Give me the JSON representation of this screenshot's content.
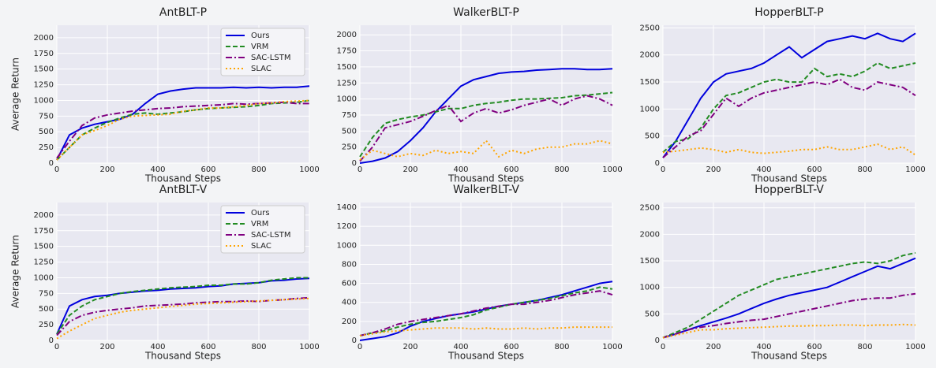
{
  "chart_data": [
    {
      "type": "line",
      "title": "AntBLT-P",
      "xlabel": "Thousand Steps",
      "ylabel": "Average Return",
      "legend": "upper right",
      "grid": true,
      "x": [
        0,
        50,
        100,
        150,
        200,
        250,
        300,
        350,
        400,
        450,
        500,
        550,
        600,
        650,
        700,
        750,
        800,
        850,
        900,
        950,
        1000
      ],
      "xlim": [
        0,
        1000
      ],
      "xticks": [
        0,
        200,
        400,
        600,
        800,
        1000
      ],
      "ylim": [
        0,
        2200
      ],
      "yticks": [
        0,
        250,
        500,
        750,
        1000,
        1250,
        1500,
        1750,
        2000
      ],
      "series": [
        {
          "name": "Ours",
          "color": "#0000dd",
          "style": "solid",
          "values": [
            50,
            450,
            560,
            620,
            660,
            700,
            780,
            950,
            1100,
            1150,
            1180,
            1200,
            1200,
            1200,
            1210,
            1200,
            1210,
            1200,
            1210,
            1210,
            1230
          ]
        },
        {
          "name": "VRM",
          "color": "#228b22",
          "style": "dashed",
          "values": [
            50,
            250,
            450,
            560,
            650,
            720,
            780,
            800,
            780,
            800,
            820,
            850,
            870,
            880,
            890,
            900,
            920,
            950,
            960,
            970,
            1000
          ]
        },
        {
          "name": "SAC-LSTM",
          "color": "#800080",
          "style": "dashdot",
          "values": [
            80,
            350,
            600,
            720,
            770,
            800,
            830,
            850,
            870,
            880,
            900,
            910,
            920,
            930,
            950,
            940,
            950,
            960,
            970,
            950,
            950
          ]
        },
        {
          "name": "SLAC",
          "color": "#ffa500",
          "style": "dotted",
          "values": [
            50,
            250,
            450,
            520,
            600,
            700,
            750,
            760,
            770,
            780,
            830,
            850,
            880,
            880,
            900,
            920,
            950,
            960,
            980,
            990,
            1000
          ]
        }
      ]
    },
    {
      "type": "line",
      "title": "WalkerBLT-P",
      "xlabel": "Thousand Steps",
      "grid": true,
      "x": [
        0,
        50,
        100,
        150,
        200,
        250,
        300,
        350,
        400,
        450,
        500,
        550,
        600,
        650,
        700,
        750,
        800,
        850,
        900,
        950,
        1000
      ],
      "xlim": [
        0,
        1000
      ],
      "xticks": [
        0,
        200,
        400,
        600,
        800,
        1000
      ],
      "ylim": [
        0,
        2150
      ],
      "yticks": [
        0,
        250,
        500,
        750,
        1000,
        1250,
        1500,
        1750,
        2000
      ],
      "series": [
        {
          "name": "Ours",
          "color": "#0000dd",
          "style": "solid",
          "values": [
            0,
            30,
            80,
            180,
            350,
            550,
            800,
            1000,
            1200,
            1300,
            1350,
            1400,
            1420,
            1430,
            1450,
            1460,
            1470,
            1470,
            1460,
            1460,
            1470
          ]
        },
        {
          "name": "VRM",
          "color": "#228b22",
          "style": "dashed",
          "values": [
            100,
            400,
            620,
            680,
            720,
            750,
            800,
            850,
            850,
            900,
            930,
            950,
            980,
            1000,
            1000,
            1010,
            1020,
            1050,
            1060,
            1080,
            1100
          ]
        },
        {
          "name": "SAC-LSTM",
          "color": "#800080",
          "style": "dashdot",
          "values": [
            30,
            250,
            550,
            600,
            650,
            730,
            820,
            900,
            650,
            780,
            850,
            780,
            830,
            900,
            950,
            1000,
            900,
            1000,
            1050,
            1000,
            900
          ]
        },
        {
          "name": "SLAC",
          "color": "#ffa500",
          "style": "dotted",
          "values": [
            50,
            200,
            150,
            100,
            150,
            120,
            200,
            150,
            180,
            150,
            350,
            100,
            200,
            150,
            220,
            250,
            250,
            300,
            300,
            350,
            300
          ]
        }
      ]
    },
    {
      "type": "line",
      "title": "HopperBLT-P",
      "xlabel": "Thousand Steps",
      "grid": true,
      "x": [
        0,
        50,
        100,
        150,
        200,
        250,
        300,
        350,
        400,
        450,
        500,
        550,
        600,
        650,
        700,
        750,
        800,
        850,
        900,
        950,
        1000
      ],
      "xlim": [
        0,
        1000
      ],
      "xticks": [
        0,
        200,
        400,
        600,
        800,
        1000
      ],
      "ylim": [
        0,
        2550
      ],
      "yticks": [
        0,
        500,
        1000,
        1500,
        2000,
        2500
      ],
      "series": [
        {
          "name": "Ours",
          "color": "#0000dd",
          "style": "solid",
          "values": [
            100,
            400,
            800,
            1200,
            1500,
            1650,
            1700,
            1750,
            1850,
            2000,
            2150,
            1950,
            2100,
            2250,
            2300,
            2350,
            2300,
            2400,
            2300,
            2250,
            2400
          ]
        },
        {
          "name": "VRM",
          "color": "#228b22",
          "style": "dashed",
          "values": [
            200,
            400,
            450,
            650,
            1000,
            1250,
            1300,
            1400,
            1500,
            1550,
            1500,
            1500,
            1750,
            1600,
            1650,
            1600,
            1700,
            1850,
            1750,
            1800,
            1850
          ]
        },
        {
          "name": "SAC-LSTM",
          "color": "#800080",
          "style": "dashdot",
          "values": [
            100,
            300,
            500,
            600,
            900,
            1200,
            1050,
            1200,
            1300,
            1350,
            1400,
            1450,
            1500,
            1450,
            1550,
            1400,
            1350,
            1500,
            1450,
            1400,
            1250
          ]
        },
        {
          "name": "SLAC",
          "color": "#ffa500",
          "style": "dotted",
          "values": [
            200,
            220,
            250,
            280,
            250,
            200,
            250,
            200,
            180,
            200,
            220,
            250,
            250,
            300,
            250,
            250,
            300,
            350,
            250,
            300,
            150
          ]
        }
      ]
    },
    {
      "type": "line",
      "title": "AntBLT-V",
      "xlabel": "Thousand Steps",
      "ylabel": "Average Return",
      "legend": "upper right",
      "grid": true,
      "x": [
        0,
        50,
        100,
        150,
        200,
        250,
        300,
        350,
        400,
        450,
        500,
        550,
        600,
        650,
        700,
        750,
        800,
        850,
        900,
        950,
        1000
      ],
      "xlim": [
        0,
        1000
      ],
      "xticks": [
        0,
        200,
        400,
        600,
        800,
        1000
      ],
      "ylim": [
        0,
        2200
      ],
      "yticks": [
        0,
        250,
        500,
        750,
        1000,
        1250,
        1500,
        1750,
        2000
      ],
      "series": [
        {
          "name": "Ours",
          "color": "#0000dd",
          "style": "solid",
          "values": [
            100,
            550,
            650,
            700,
            720,
            750,
            770,
            790,
            800,
            820,
            830,
            840,
            860,
            870,
            900,
            910,
            920,
            950,
            960,
            980,
            990
          ]
        },
        {
          "name": "VRM",
          "color": "#228b22",
          "style": "dashed",
          "values": [
            100,
            400,
            550,
            650,
            700,
            750,
            780,
            800,
            820,
            840,
            850,
            860,
            880,
            880,
            900,
            900,
            920,
            960,
            980,
            1000,
            1000
          ]
        },
        {
          "name": "SAC-LSTM",
          "color": "#800080",
          "style": "dashdot",
          "values": [
            80,
            300,
            400,
            450,
            480,
            500,
            520,
            550,
            560,
            570,
            580,
            600,
            610,
            620,
            620,
            630,
            620,
            640,
            650,
            670,
            680
          ]
        },
        {
          "name": "SLAC",
          "color": "#ffa500",
          "style": "dotted",
          "values": [
            30,
            150,
            250,
            350,
            400,
            450,
            480,
            500,
            520,
            540,
            560,
            580,
            590,
            600,
            610,
            620,
            630,
            640,
            650,
            660,
            670
          ]
        }
      ]
    },
    {
      "type": "line",
      "title": "WalkerBLT-V",
      "xlabel": "Thousand Steps",
      "grid": true,
      "x": [
        0,
        50,
        100,
        150,
        200,
        250,
        300,
        350,
        400,
        450,
        500,
        550,
        600,
        650,
        700,
        750,
        800,
        850,
        900,
        950,
        1000
      ],
      "xlim": [
        0,
        1000
      ],
      "xticks": [
        0,
        200,
        400,
        600,
        800,
        1000
      ],
      "ylim": [
        0,
        1450
      ],
      "yticks": [
        0,
        200,
        400,
        600,
        800,
        1000,
        1200,
        1400
      ],
      "series": [
        {
          "name": "Ours",
          "color": "#0000dd",
          "style": "solid",
          "values": [
            0,
            20,
            40,
            80,
            150,
            200,
            230,
            260,
            280,
            300,
            330,
            360,
            380,
            400,
            420,
            450,
            480,
            520,
            560,
            600,
            620
          ]
        },
        {
          "name": "VRM",
          "color": "#228b22",
          "style": "dashed",
          "values": [
            50,
            80,
            100,
            140,
            170,
            190,
            200,
            220,
            240,
            270,
            320,
            350,
            380,
            400,
            420,
            440,
            470,
            500,
            520,
            560,
            540
          ]
        },
        {
          "name": "SAC-LSTM",
          "color": "#800080",
          "style": "dashdot",
          "values": [
            50,
            80,
            120,
            170,
            200,
            220,
            240,
            260,
            280,
            310,
            340,
            360,
            380,
            380,
            400,
            420,
            450,
            480,
            500,
            520,
            480
          ]
        },
        {
          "name": "SLAC",
          "color": "#ffa500",
          "style": "dotted",
          "values": [
            50,
            70,
            90,
            100,
            110,
            120,
            130,
            130,
            130,
            120,
            130,
            120,
            120,
            130,
            120,
            130,
            130,
            140,
            140,
            140,
            140
          ]
        }
      ]
    },
    {
      "type": "line",
      "title": "HopperBLT-V",
      "xlabel": "Thousand Steps",
      "grid": true,
      "x": [
        0,
        50,
        100,
        150,
        200,
        250,
        300,
        350,
        400,
        450,
        500,
        550,
        600,
        650,
        700,
        750,
        800,
        850,
        900,
        950,
        1000
      ],
      "xlim": [
        0,
        1000
      ],
      "xticks": [
        0,
        200,
        400,
        600,
        800,
        1000
      ],
      "ylim": [
        0,
        2600
      ],
      "yticks": [
        0,
        500,
        1000,
        1500,
        2000,
        2500
      ],
      "series": [
        {
          "name": "Ours",
          "color": "#0000dd",
          "style": "solid",
          "values": [
            50,
            120,
            200,
            280,
            350,
            420,
            500,
            600,
            700,
            780,
            850,
            900,
            950,
            1000,
            1100,
            1200,
            1300,
            1400,
            1350,
            1450,
            1550
          ]
        },
        {
          "name": "VRM",
          "color": "#228b22",
          "style": "dashed",
          "values": [
            50,
            150,
            250,
            400,
            550,
            700,
            850,
            950,
            1050,
            1150,
            1200,
            1250,
            1300,
            1350,
            1400,
            1450,
            1480,
            1450,
            1500,
            1600,
            1650
          ]
        },
        {
          "name": "SAC-LSTM",
          "color": "#800080",
          "style": "dashdot",
          "values": [
            50,
            120,
            200,
            250,
            280,
            320,
            350,
            380,
            400,
            450,
            500,
            550,
            600,
            650,
            700,
            750,
            780,
            800,
            800,
            850,
            880
          ]
        },
        {
          "name": "SLAC",
          "color": "#ffa500",
          "style": "dotted",
          "values": [
            50,
            100,
            150,
            200,
            200,
            220,
            230,
            240,
            250,
            260,
            270,
            270,
            280,
            280,
            290,
            290,
            280,
            290,
            290,
            300,
            290
          ]
        }
      ]
    }
  ]
}
